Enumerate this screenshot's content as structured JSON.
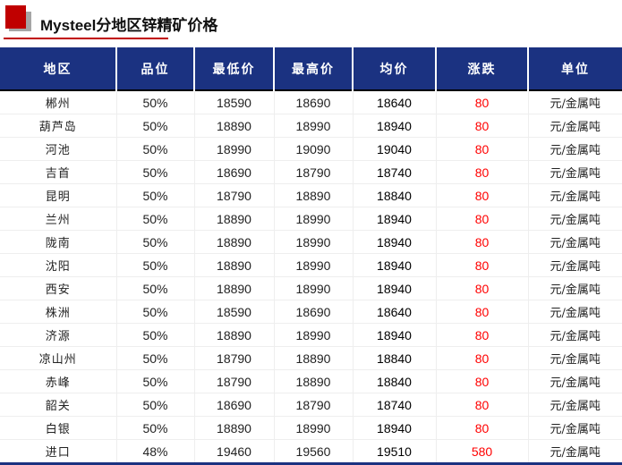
{
  "title": "Mysteel分地区锌精矿价格",
  "colors": {
    "header_bg": "#1b3281",
    "accent": "#c00000",
    "change": "#ff0000"
  },
  "headers": [
    "地区",
    "品位",
    "最低价",
    "最高价",
    "均价",
    "涨跌",
    "单位"
  ],
  "rows": [
    [
      "郴州",
      "50%",
      "18590",
      "18690",
      "18640",
      "80",
      "元/金属吨"
    ],
    [
      "葫芦岛",
      "50%",
      "18890",
      "18990",
      "18940",
      "80",
      "元/金属吨"
    ],
    [
      "河池",
      "50%",
      "18990",
      "19090",
      "19040",
      "80",
      "元/金属吨"
    ],
    [
      "吉首",
      "50%",
      "18690",
      "18790",
      "18740",
      "80",
      "元/金属吨"
    ],
    [
      "昆明",
      "50%",
      "18790",
      "18890",
      "18840",
      "80",
      "元/金属吨"
    ],
    [
      "兰州",
      "50%",
      "18890",
      "18990",
      "18940",
      "80",
      "元/金属吨"
    ],
    [
      "陇南",
      "50%",
      "18890",
      "18990",
      "18940",
      "80",
      "元/金属吨"
    ],
    [
      "沈阳",
      "50%",
      "18890",
      "18990",
      "18940",
      "80",
      "元/金属吨"
    ],
    [
      "西安",
      "50%",
      "18890",
      "18990",
      "18940",
      "80",
      "元/金属吨"
    ],
    [
      "株洲",
      "50%",
      "18590",
      "18690",
      "18640",
      "80",
      "元/金属吨"
    ],
    [
      "济源",
      "50%",
      "18890",
      "18990",
      "18940",
      "80",
      "元/金属吨"
    ],
    [
      "凉山州",
      "50%",
      "18790",
      "18890",
      "18840",
      "80",
      "元/金属吨"
    ],
    [
      "赤峰",
      "50%",
      "18790",
      "18890",
      "18840",
      "80",
      "元/金属吨"
    ],
    [
      "韶关",
      "50%",
      "18690",
      "18790",
      "18740",
      "80",
      "元/金属吨"
    ],
    [
      "白银",
      "50%",
      "18890",
      "18990",
      "18940",
      "80",
      "元/金属吨"
    ],
    [
      "进口",
      "48%",
      "19460",
      "19560",
      "19510",
      "580",
      "元/金属吨"
    ]
  ]
}
